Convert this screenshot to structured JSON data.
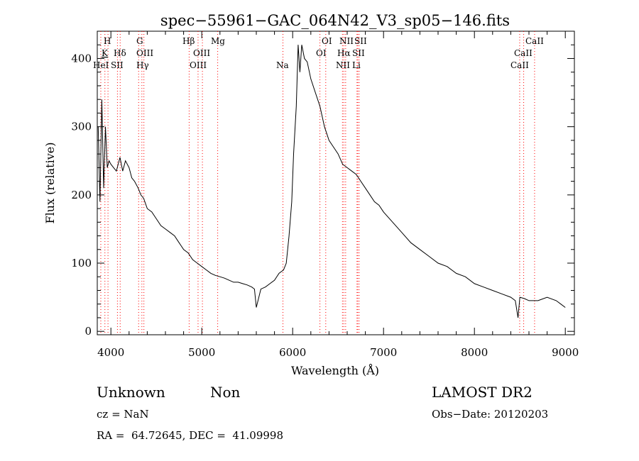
{
  "chart_data": {
    "type": "line",
    "title": "spec−55961−GAC_064N42_V3_sp05−146.fits",
    "xlabel": "Wavelength (Å)",
    "ylabel": "Flux (relative)",
    "xlim": [
      3850,
      9100
    ],
    "ylim": [
      -5,
      440
    ],
    "xticks": [
      4000,
      5000,
      6000,
      7000,
      8000,
      9000
    ],
    "yticks": [
      0,
      100,
      200,
      300,
      400
    ],
    "xtick_labels": [
      "4000",
      "5000",
      "6000",
      "7000",
      "8000",
      "9000"
    ],
    "ytick_labels": [
      "0",
      "100",
      "200",
      "300",
      "400"
    ],
    "grid": false,
    "line_color": "#000000",
    "marker_color": "#ff0000",
    "series": [
      {
        "x": [
          3860,
          3880,
          3900,
          3920,
          3940,
          3960,
          3980,
          4000,
          4030,
          4060,
          4100,
          4130,
          4160,
          4200,
          4230,
          4260,
          4300,
          4330,
          4360,
          4400,
          4450,
          4500,
          4550,
          4600,
          4650,
          4700,
          4750,
          4800,
          4850,
          4900,
          4950,
          5000,
          5050,
          5100,
          5150,
          5200,
          5250,
          5300,
          5350,
          5400,
          5450,
          5500,
          5550,
          5580,
          5600,
          5650,
          5700,
          5750,
          5800,
          5850,
          5900,
          5930,
          5960,
          5990,
          6010,
          6040,
          6060,
          6080,
          6100,
          6130,
          6160,
          6200,
          6250,
          6300,
          6350,
          6400,
          6450,
          6500,
          6550,
          6600,
          6650,
          6700,
          6750,
          6800,
          6850,
          6900,
          6950,
          7000,
          7100,
          7200,
          7300,
          7400,
          7500,
          7600,
          7700,
          7800,
          7900,
          8000,
          8100,
          8200,
          8300,
          8400,
          8450,
          8480,
          8500,
          8550,
          8600,
          8700,
          8800,
          8900,
          8950,
          9000
        ],
        "y": [
          300,
          190,
          340,
          210,
          300,
          240,
          250,
          245,
          240,
          235,
          255,
          235,
          250,
          240,
          225,
          220,
          210,
          200,
          195,
          180,
          175,
          165,
          155,
          150,
          145,
          140,
          130,
          120,
          115,
          105,
          100,
          95,
          90,
          85,
          82,
          80,
          78,
          75,
          72,
          72,
          70,
          68,
          65,
          62,
          35,
          62,
          65,
          70,
          75,
          85,
          90,
          100,
          140,
          190,
          260,
          330,
          420,
          380,
          420,
          400,
          395,
          370,
          350,
          330,
          300,
          280,
          270,
          260,
          245,
          240,
          235,
          230,
          220,
          210,
          200,
          190,
          185,
          175,
          160,
          145,
          130,
          120,
          110,
          100,
          95,
          85,
          80,
          70,
          65,
          60,
          55,
          50,
          45,
          20,
          50,
          48,
          45,
          45,
          50,
          45,
          40,
          35
        ]
      }
    ],
    "line_markers": [
      {
        "name": "HeI",
        "x": 3889
      },
      {
        "name": "H",
        "x": 3968
      },
      {
        "name": "K",
        "x": 3934
      },
      {
        "name": "Hδ",
        "x": 4102
      },
      {
        "name": "SII",
        "x": 4072
      },
      {
        "name": "G",
        "x": 4305
      },
      {
        "name": "OIII",
        "x": 4363
      },
      {
        "name": "Hγ",
        "x": 4341
      },
      {
        "name": "Hβ",
        "x": 4861
      },
      {
        "name": "OIII",
        "x": 4959
      },
      {
        "name": "OIII",
        "x": 5007
      },
      {
        "name": "Mg",
        "x": 5175
      },
      {
        "name": "Na",
        "x": 5893
      },
      {
        "name": "OI",
        "x": 6300
      },
      {
        "name": "OI",
        "x": 6364
      },
      {
        "name": "NII",
        "x": 6548
      },
      {
        "name": "Hα",
        "x": 6563
      },
      {
        "name": "NII",
        "x": 6583
      },
      {
        "name": "SII",
        "x": 6716
      },
      {
        "name": "SII",
        "x": 6731
      },
      {
        "name": "Li",
        "x": 6708
      },
      {
        "name": "CaII",
        "x": 8498
      },
      {
        "name": "CaII",
        "x": 8542
      },
      {
        "name": "CaII",
        "x": 8662
      }
    ],
    "line_labels": {
      "col1_row1": "H",
      "col1_row2": "K",
      "col1_row3": "HeI",
      "hdelta": "Hδ",
      "sii_blue": "SII",
      "g": "G",
      "oiii_4363": "OIII",
      "hgamma": "Hγ",
      "hbeta": "Hβ",
      "oiii_4959": "OIII",
      "oiii_5007": "OIII",
      "mg": "Mg",
      "na": "Na",
      "oi_a": "OI",
      "oi_b": "OI",
      "nii_a": "NII",
      "sii_top": "SII",
      "halpha": "Hα",
      "sii_mid": "SII",
      "nii_b": "NII",
      "li": "Li",
      "caii_a": "CaII",
      "caii_b": "CaII",
      "caii_c": "CaII"
    }
  },
  "info": {
    "class": "Unknown",
    "subclass": "Non",
    "survey": "LAMOST DR2",
    "cz": "cz = NaN",
    "obs_date": "Obs−Date: 20120203",
    "coords": "RA =  64.72645, DEC =  41.09998"
  }
}
